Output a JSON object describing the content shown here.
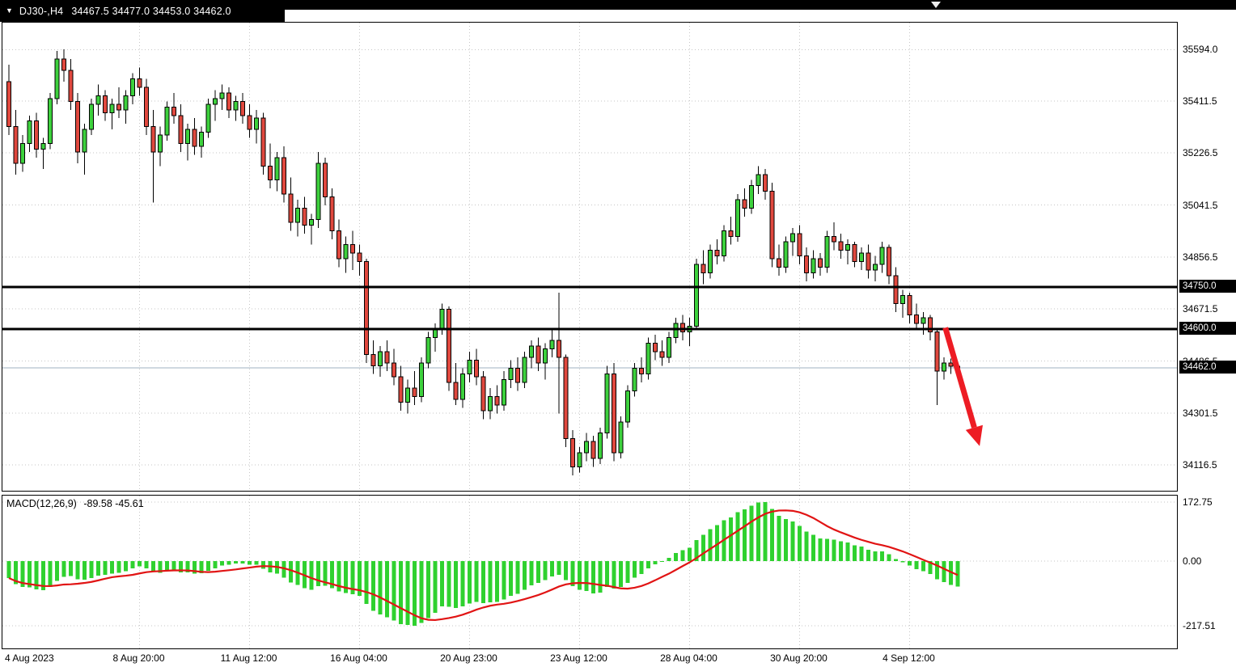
{
  "header": {
    "symbol_tf": "DJ30-,H4",
    "ohlc_text": "34467.5 34477.0 34453.0 34462.0"
  },
  "icons": {
    "chart_menu": "▼",
    "shift_marker": "triangle-down"
  },
  "colors": {
    "header_bg": "#000000",
    "header_text": "#ffffff",
    "pane_bg": "#ffffff",
    "grid": "#c6c6c6",
    "bull": "#3dd13d",
    "bear": "#e0483e",
    "wick": "#000000",
    "hline": "#000000",
    "price_line": "#9fb1c1",
    "badge_bg": "#000000",
    "badge_text": "#ffffff",
    "macd_hist": "#2fd12f",
    "macd_signal": "#e11414",
    "arrow": "#ed1c24"
  },
  "chart_data": {
    "type": "candlestick",
    "symbol": "DJ30-",
    "timeframe": "H4",
    "price_axis": {
      "min": 34025,
      "max": 35690,
      "ticks": [
        {
          "label": "35594.0",
          "price": 35594.0
        },
        {
          "label": "35411.5",
          "price": 35411.5
        },
        {
          "label": "35226.5",
          "price": 35226.5
        },
        {
          "label": "35041.5",
          "price": 35041.5
        },
        {
          "label": "34856.5",
          "price": 34856.5
        },
        {
          "label": "34671.5",
          "price": 34671.5
        },
        {
          "label": "34486.5",
          "price": 34486.5
        },
        {
          "label": "34301.5",
          "price": 34301.5
        },
        {
          "label": "34116.5",
          "price": 34116.5
        }
      ]
    },
    "hlines": [
      {
        "label": "34750.0",
        "price": 34750.0
      },
      {
        "label": "34600.0",
        "price": 34600.0
      }
    ],
    "current_price": {
      "label": "34462.0",
      "price": 34462.0
    },
    "x_labels": [
      {
        "text": "4 Aug 2023",
        "bar": 0
      },
      {
        "text": "8 Aug 20:00",
        "bar": 19
      },
      {
        "text": "11 Aug 12:00",
        "bar": 35
      },
      {
        "text": "16 Aug 04:00",
        "bar": 51
      },
      {
        "text": "20 Aug 23:00",
        "bar": 67
      },
      {
        "text": "23 Aug 12:00",
        "bar": 83
      },
      {
        "text": "28 Aug 04:00",
        "bar": 99
      },
      {
        "text": "30 Aug 20:00",
        "bar": 115
      },
      {
        "text": "4 Sep 12:00",
        "bar": 131
      }
    ],
    "candles": [
      [
        35480,
        35540,
        35290,
        35320
      ],
      [
        35320,
        35380,
        35150,
        35190
      ],
      [
        35190,
        35290,
        35160,
        35260
      ],
      [
        35260,
        35360,
        35230,
        35340
      ],
      [
        35340,
        35370,
        35210,
        35240
      ],
      [
        35240,
        35280,
        35170,
        35260
      ],
      [
        35260,
        35440,
        35240,
        35420
      ],
      [
        35420,
        35590,
        35400,
        35560
      ],
      [
        35560,
        35595,
        35480,
        35520
      ],
      [
        35520,
        35560,
        35380,
        35410
      ],
      [
        35410,
        35440,
        35190,
        35230
      ],
      [
        35230,
        35330,
        35150,
        35310
      ],
      [
        35310,
        35420,
        35290,
        35400
      ],
      [
        35400,
        35470,
        35360,
        35430
      ],
      [
        35430,
        35450,
        35340,
        35370
      ],
      [
        35370,
        35420,
        35310,
        35400
      ],
      [
        35400,
        35460,
        35350,
        35380
      ],
      [
        35380,
        35450,
        35330,
        35430
      ],
      [
        35430,
        35510,
        35400,
        35490
      ],
      [
        35490,
        35530,
        35430,
        35460
      ],
      [
        35460,
        35490,
        35290,
        35320
      ],
      [
        35320,
        35380,
        35050,
        35230
      ],
      [
        35230,
        35320,
        35180,
        35290
      ],
      [
        35290,
        35410,
        35270,
        35390
      ],
      [
        35390,
        35440,
        35330,
        35360
      ],
      [
        35360,
        35400,
        35230,
        35260
      ],
      [
        35260,
        35330,
        35200,
        35310
      ],
      [
        35310,
        35350,
        35220,
        35250
      ],
      [
        35250,
        35320,
        35210,
        35300
      ],
      [
        35300,
        35420,
        35280,
        35400
      ],
      [
        35400,
        35450,
        35340,
        35420
      ],
      [
        35420,
        35470,
        35380,
        35440
      ],
      [
        35440,
        35460,
        35350,
        35380
      ],
      [
        35380,
        35430,
        35340,
        35410
      ],
      [
        35410,
        35440,
        35330,
        35360
      ],
      [
        35360,
        35400,
        35280,
        35310
      ],
      [
        35310,
        35380,
        35260,
        35350
      ],
      [
        35350,
        35370,
        35150,
        35180
      ],
      [
        35180,
        35260,
        35100,
        35130
      ],
      [
        35130,
        35230,
        35090,
        35210
      ],
      [
        35210,
        35250,
        35050,
        35080
      ],
      [
        35080,
        35140,
        34950,
        34980
      ],
      [
        34980,
        35060,
        34930,
        35030
      ],
      [
        35030,
        35070,
        34940,
        34970
      ],
      [
        34970,
        35010,
        34900,
        34990
      ],
      [
        34990,
        35230,
        34960,
        35190
      ],
      [
        35190,
        35210,
        35040,
        35070
      ],
      [
        35070,
        35100,
        34920,
        34950
      ],
      [
        34950,
        34990,
        34820,
        34850
      ],
      [
        34850,
        34930,
        34800,
        34900
      ],
      [
        34900,
        34950,
        34810,
        34870
      ],
      [
        34870,
        34900,
        34790,
        34840
      ],
      [
        34840,
        34850,
        34480,
        34510
      ],
      [
        34510,
        34560,
        34440,
        34470
      ],
      [
        34470,
        34540,
        34430,
        34520
      ],
      [
        34520,
        34560,
        34450,
        34480
      ],
      [
        34480,
        34530,
        34400,
        34430
      ],
      [
        34430,
        34470,
        34310,
        34340
      ],
      [
        34340,
        34420,
        34300,
        34390
      ],
      [
        34390,
        34450,
        34330,
        34360
      ],
      [
        34360,
        34500,
        34340,
        34480
      ],
      [
        34480,
        34590,
        34460,
        34570
      ],
      [
        34570,
        34620,
        34520,
        34600
      ],
      [
        34600,
        34690,
        34580,
        34670
      ],
      [
        34670,
        34680,
        34380,
        34410
      ],
      [
        34410,
        34480,
        34330,
        34350
      ],
      [
        34350,
        34460,
        34320,
        34440
      ],
      [
        34440,
        34520,
        34410,
        34490
      ],
      [
        34490,
        34530,
        34400,
        34430
      ],
      [
        34430,
        34450,
        34280,
        34310
      ],
      [
        34310,
        34390,
        34280,
        34360
      ],
      [
        34360,
        34400,
        34300,
        34330
      ],
      [
        34330,
        34450,
        34310,
        34420
      ],
      [
        34420,
        34490,
        34390,
        34460
      ],
      [
        34460,
        34500,
        34380,
        34410
      ],
      [
        34410,
        34520,
        34390,
        34500
      ],
      [
        34500,
        34560,
        34460,
        34540
      ],
      [
        34540,
        34570,
        34450,
        34480
      ],
      [
        34480,
        34550,
        34420,
        34530
      ],
      [
        34530,
        34600,
        34500,
        34560
      ],
      [
        34560,
        34730,
        34300,
        34500
      ],
      [
        34500,
        34510,
        34180,
        34210
      ],
      [
        34210,
        34240,
        34080,
        34110
      ],
      [
        34110,
        34180,
        34090,
        34160
      ],
      [
        34160,
        34230,
        34130,
        34200
      ],
      [
        34200,
        34220,
        34110,
        34140
      ],
      [
        34140,
        34250,
        34120,
        34230
      ],
      [
        34230,
        34470,
        34210,
        34440
      ],
      [
        34440,
        34480,
        34130,
        34160
      ],
      [
        34160,
        34290,
        34140,
        34270
      ],
      [
        34270,
        34400,
        34250,
        34380
      ],
      [
        34380,
        34480,
        34360,
        34460
      ],
      [
        34460,
        34500,
        34410,
        34440
      ],
      [
        34440,
        34570,
        34420,
        34550
      ],
      [
        34550,
        34580,
        34490,
        34520
      ],
      [
        34520,
        34560,
        34470,
        34500
      ],
      [
        34500,
        34590,
        34480,
        34570
      ],
      [
        34570,
        34640,
        34550,
        34620
      ],
      [
        34620,
        34650,
        34560,
        34590
      ],
      [
        34590,
        34640,
        34540,
        34610
      ],
      [
        34610,
        34850,
        34600,
        34830
      ],
      [
        34830,
        34880,
        34760,
        34800
      ],
      [
        34800,
        34900,
        34780,
        34880
      ],
      [
        34880,
        34920,
        34830,
        34860
      ],
      [
        34860,
        34970,
        34840,
        34950
      ],
      [
        34950,
        35000,
        34900,
        34930
      ],
      [
        34930,
        35080,
        34910,
        35060
      ],
      [
        35060,
        35100,
        35000,
        35030
      ],
      [
        35030,
        35130,
        35010,
        35110
      ],
      [
        35110,
        35180,
        35080,
        35150
      ],
      [
        35150,
        35170,
        35060,
        35090
      ],
      [
        35090,
        35120,
        34820,
        34850
      ],
      [
        34850,
        34900,
        34790,
        34820
      ],
      [
        34820,
        34930,
        34800,
        34910
      ],
      [
        34910,
        34960,
        34860,
        34940
      ],
      [
        34940,
        34970,
        34830,
        34860
      ],
      [
        34860,
        34890,
        34770,
        34800
      ],
      [
        34800,
        34880,
        34780,
        34850
      ],
      [
        34850,
        34870,
        34790,
        34820
      ],
      [
        34820,
        34950,
        34800,
        34930
      ],
      [
        34930,
        34980,
        34880,
        34910
      ],
      [
        34910,
        34940,
        34850,
        34880
      ],
      [
        34880,
        34920,
        34830,
        34900
      ],
      [
        34900,
        34910,
        34820,
        34840
      ],
      [
        34840,
        34890,
        34810,
        34870
      ],
      [
        34870,
        34900,
        34780,
        34810
      ],
      [
        34810,
        34860,
        34770,
        34830
      ],
      [
        34830,
        34910,
        34800,
        34890
      ],
      [
        34890,
        34900,
        34760,
        34790
      ],
      [
        34790,
        34820,
        34660,
        34690
      ],
      [
        34690,
        34740,
        34640,
        34720
      ],
      [
        34720,
        34730,
        34620,
        34650
      ],
      [
        34650,
        34690,
        34600,
        34620
      ],
      [
        34620,
        34660,
        34580,
        34640
      ],
      [
        34640,
        34650,
        34560,
        34590
      ],
      [
        34590,
        34600,
        34330,
        34450
      ],
      [
        34450,
        34500,
        34420,
        34480
      ],
      [
        34480,
        34495,
        34440,
        34467.5
      ],
      [
        34467.5,
        34477,
        34453,
        34462
      ]
    ],
    "arrow": {
      "from": {
        "bar": 136.2,
        "price": 34605
      },
      "to": {
        "bar": 140.4,
        "price": 34250
      }
    },
    "indicator": {
      "name": "MACD(12,26,9)",
      "values_label": "-89.58 -45.61",
      "macd_value": -89.58,
      "signal_value": -45.61,
      "params": {
        "fast": 12,
        "slow": 26,
        "signal": 9
      },
      "seed": {
        "ema12": 35550,
        "ema26": 35595
      },
      "axis_ticks": [
        "172.75",
        "0.00",
        "-217.51"
      ]
    }
  }
}
